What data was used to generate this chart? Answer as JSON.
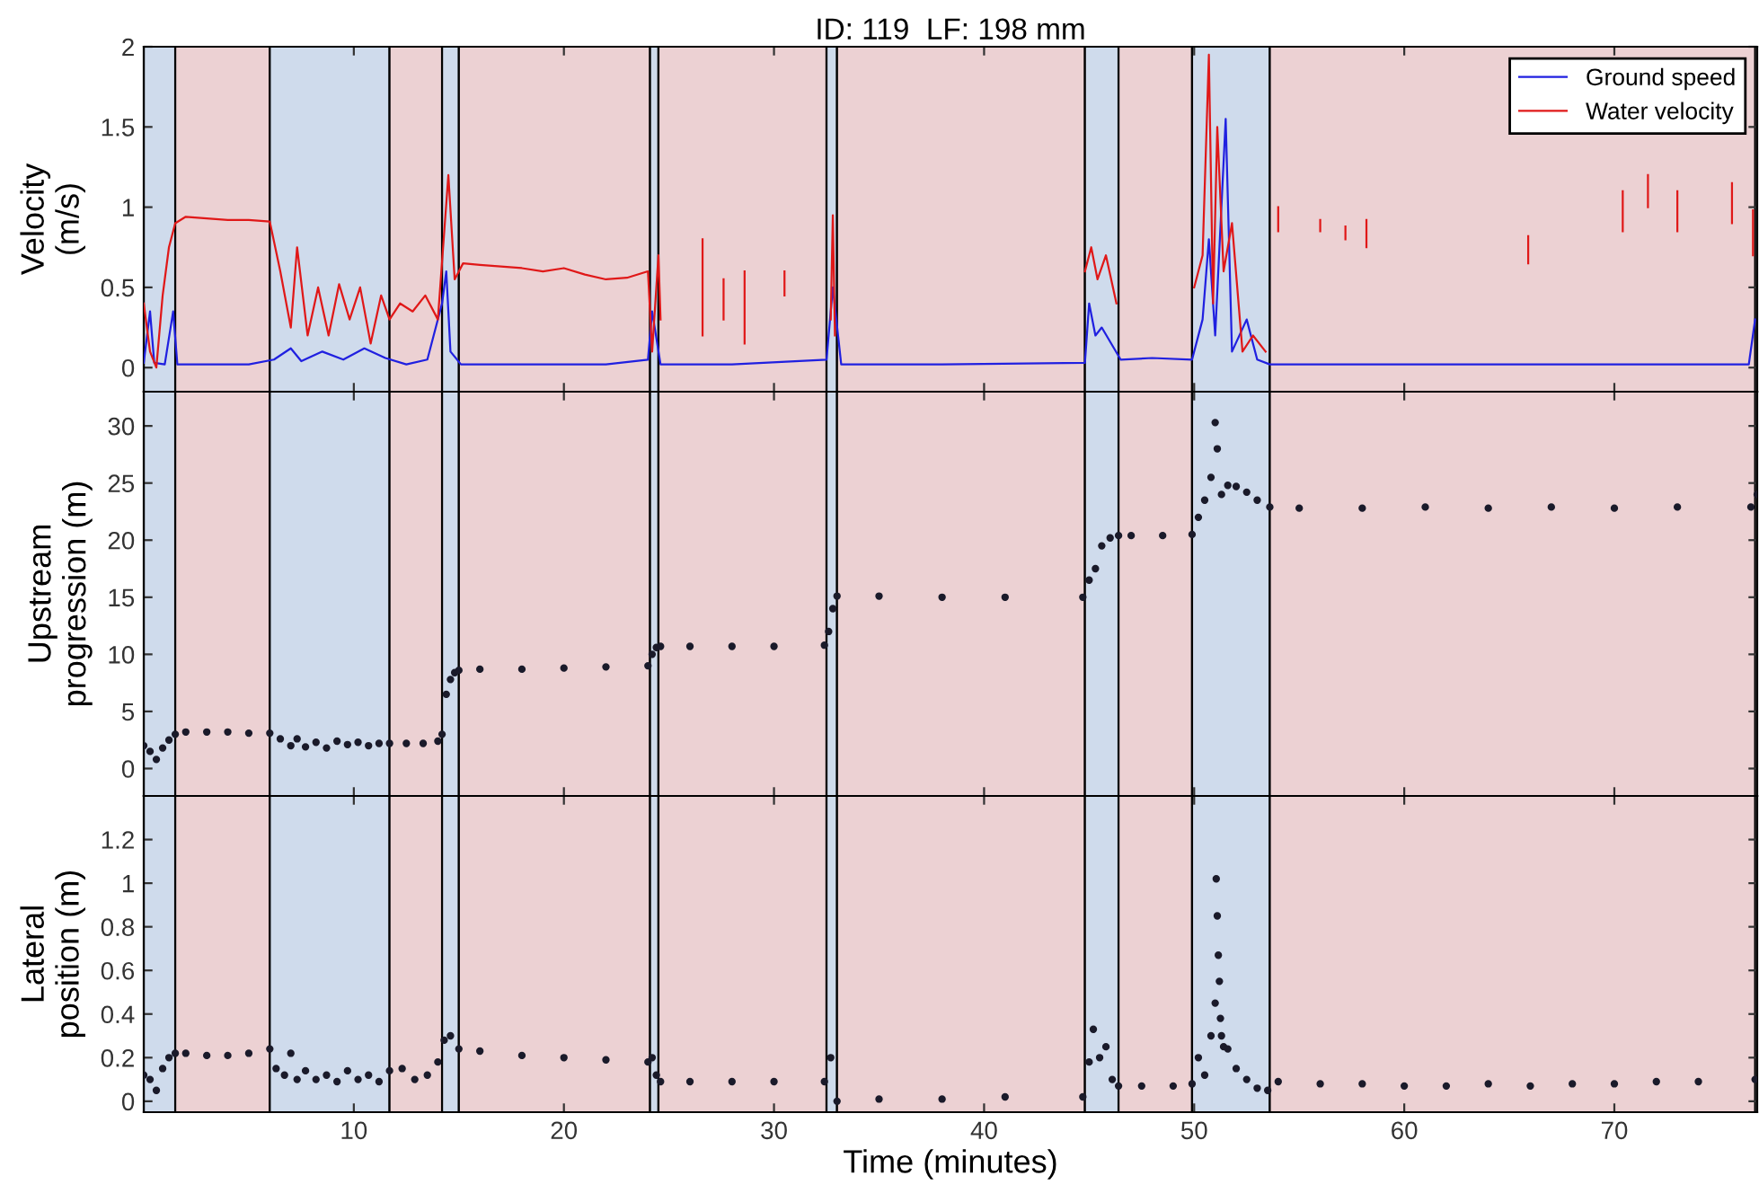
{
  "chart_data": [
    {
      "type": "line",
      "title": "ID: 119  LF: 198 mm",
      "ylabel": "Velocity\n(m/s)",
      "xlim": [
        0,
        76.8
      ],
      "xticks": [
        10,
        20,
        30,
        40,
        50,
        60,
        70
      ],
      "ylim": [
        -0.15,
        2
      ],
      "yticks": [
        0,
        0.5,
        1,
        1.5,
        2
      ],
      "tick_labels": "y",
      "legend": "top right",
      "grid": false,
      "bands": [
        {
          "axis": "x",
          "from": 0,
          "to": 1.5,
          "color": "#cfdbec"
        },
        {
          "axis": "x",
          "from": 1.5,
          "to": 6.0,
          "color": "#ecd1d3"
        },
        {
          "axis": "x",
          "from": 6.0,
          "to": 11.7,
          "color": "#cfdbec"
        },
        {
          "axis": "x",
          "from": 11.7,
          "to": 14.2,
          "color": "#ecd1d3"
        },
        {
          "axis": "x",
          "from": 14.2,
          "to": 15.0,
          "color": "#cfdbec"
        },
        {
          "axis": "x",
          "from": 15.0,
          "to": 24.1,
          "color": "#ecd1d3"
        },
        {
          "axis": "x",
          "from": 24.1,
          "to": 24.5,
          "color": "#cfdbec"
        },
        {
          "axis": "x",
          "from": 24.5,
          "to": 32.5,
          "color": "#ecd1d3"
        },
        {
          "axis": "x",
          "from": 32.5,
          "to": 33.0,
          "color": "#cfdbec"
        },
        {
          "axis": "x",
          "from": 33.0,
          "to": 44.8,
          "color": "#ecd1d3"
        },
        {
          "axis": "x",
          "from": 44.8,
          "to": 46.4,
          "color": "#cfdbec"
        },
        {
          "axis": "x",
          "from": 46.4,
          "to": 49.9,
          "color": "#ecd1d3"
        },
        {
          "axis": "x",
          "from": 49.9,
          "to": 53.6,
          "color": "#cfdbec"
        },
        {
          "axis": "x",
          "from": 53.6,
          "to": 76.7,
          "color": "#ecd1d3"
        }
      ],
      "series": [
        {
          "name": "Ground speed",
          "color": "#2020e0",
          "x": [
            0,
            0.3,
            0.5,
            1.0,
            1.4,
            1.6,
            3,
            5,
            6.2,
            7,
            7.5,
            8.5,
            9.5,
            10.5,
            11.5,
            12.5,
            13.5,
            14.2,
            14.4,
            14.6,
            15.1,
            18,
            22,
            24.0,
            24.2,
            24.6,
            28,
            32.5,
            32.8,
            33.2,
            38,
            44.8,
            45.0,
            45.3,
            45.6,
            46.5,
            48,
            49.9,
            50.4,
            50.7,
            51.0,
            51.5,
            51.8,
            52.5,
            53,
            53.6,
            60,
            70,
            76.4,
            76.7
          ],
          "values": [
            0.03,
            0.35,
            0.03,
            0.02,
            0.35,
            0.02,
            0.02,
            0.02,
            0.05,
            0.12,
            0.04,
            0.1,
            0.05,
            0.12,
            0.06,
            0.02,
            0.05,
            0.4,
            0.6,
            0.1,
            0.02,
            0.02,
            0.02,
            0.05,
            0.35,
            0.02,
            0.02,
            0.05,
            0.5,
            0.02,
            0.02,
            0.03,
            0.4,
            0.2,
            0.25,
            0.05,
            0.06,
            0.05,
            0.3,
            0.8,
            0.2,
            1.55,
            0.1,
            0.3,
            0.05,
            0.02,
            0.02,
            0.02,
            0.02,
            0.3
          ]
        },
        {
          "name": "Water velocity",
          "color": "#e01818",
          "x": [
            0,
            0.3,
            0.6,
            0.9,
            1.2,
            1.5,
            2,
            3,
            4,
            5,
            6,
            6.5,
            7.0,
            7.3,
            7.8,
            8.3,
            8.8,
            9.3,
            9.8,
            10.3,
            10.8,
            11.3,
            11.7,
            12.2,
            12.8,
            13.4,
            14.0,
            14.5,
            14.8,
            15.2,
            16,
            17,
            18,
            19,
            20,
            21,
            22,
            23,
            24.0,
            24.2,
            24.5,
            24.6,
            null,
            26.6,
            26.6,
            null,
            27.6,
            27.6,
            null,
            28.6,
            28.6,
            null,
            30.5,
            30.5,
            null,
            32.7,
            32.8,
            32.9,
            null,
            44.8,
            45.1,
            45.4,
            45.8,
            46.3,
            null,
            50.0,
            50.4,
            50.7,
            50.9,
            51.1,
            51.4,
            51.8,
            52.3,
            52.8,
            53.4,
            null,
            54.0,
            54.0,
            null,
            56.0,
            56.0,
            null,
            57.2,
            57.2,
            null,
            58.2,
            58.2,
            null,
            65.9,
            65.9,
            null,
            70.4,
            70.4,
            null,
            71.6,
            71.6,
            null,
            73.0,
            73.0,
            null,
            75.6,
            75.6,
            null,
            76.6,
            76.6
          ],
          "values": [
            0.4,
            0.1,
            0.0,
            0.45,
            0.75,
            0.9,
            0.94,
            0.93,
            0.92,
            0.92,
            0.91,
            0.6,
            0.25,
            0.75,
            0.2,
            0.5,
            0.2,
            0.52,
            0.3,
            0.5,
            0.15,
            0.45,
            0.3,
            0.4,
            0.35,
            0.45,
            0.3,
            1.2,
            0.55,
            0.65,
            0.64,
            0.63,
            0.62,
            0.6,
            0.62,
            0.58,
            0.55,
            0.56,
            0.6,
            0.1,
            0.7,
            0.3,
            null,
            0.2,
            0.8,
            null,
            0.3,
            0.55,
            null,
            0.15,
            0.6,
            null,
            0.45,
            0.6,
            null,
            0.3,
            0.95,
            0.2,
            null,
            0.6,
            0.75,
            0.55,
            0.7,
            0.4,
            null,
            0.5,
            0.7,
            1.95,
            0.4,
            1.5,
            0.6,
            0.9,
            0.1,
            0.2,
            0.1,
            null,
            0.85,
            1.0,
            null,
            0.85,
            0.92,
            null,
            0.8,
            0.88,
            null,
            0.75,
            0.92,
            null,
            0.65,
            0.82,
            null,
            0.85,
            1.1,
            null,
            1.0,
            1.2,
            null,
            0.85,
            1.1,
            null,
            0.9,
            1.15,
            null,
            0.7,
            0.98
          ]
        }
      ]
    },
    {
      "type": "scatter",
      "ylabel": "Upstream\nprogression (m)",
      "xlim": [
        0,
        76.8
      ],
      "xticks": [
        10,
        20,
        30,
        40,
        50,
        60,
        70
      ],
      "ylim": [
        -2.4,
        33
      ],
      "yticks": [
        0,
        5,
        10,
        15,
        20,
        25,
        30
      ],
      "tick_labels": "y",
      "marker": "circle",
      "grid": false,
      "bands": [
        {
          "axis": "x",
          "from": 0,
          "to": 1.5,
          "color": "#cfdbec"
        },
        {
          "axis": "x",
          "from": 1.5,
          "to": 6.0,
          "color": "#ecd1d3"
        },
        {
          "axis": "x",
          "from": 6.0,
          "to": 11.7,
          "color": "#cfdbec"
        },
        {
          "axis": "x",
          "from": 11.7,
          "to": 14.2,
          "color": "#ecd1d3"
        },
        {
          "axis": "x",
          "from": 14.2,
          "to": 15.0,
          "color": "#cfdbec"
        },
        {
          "axis": "x",
          "from": 15.0,
          "to": 24.1,
          "color": "#ecd1d3"
        },
        {
          "axis": "x",
          "from": 24.1,
          "to": 24.5,
          "color": "#cfdbec"
        },
        {
          "axis": "x",
          "from": 24.5,
          "to": 32.5,
          "color": "#ecd1d3"
        },
        {
          "axis": "x",
          "from": 32.5,
          "to": 33.0,
          "color": "#cfdbec"
        },
        {
          "axis": "x",
          "from": 33.0,
          "to": 44.8,
          "color": "#ecd1d3"
        },
        {
          "axis": "x",
          "from": 44.8,
          "to": 46.4,
          "color": "#cfdbec"
        },
        {
          "axis": "x",
          "from": 46.4,
          "to": 49.9,
          "color": "#ecd1d3"
        },
        {
          "axis": "x",
          "from": 49.9,
          "to": 53.6,
          "color": "#cfdbec"
        },
        {
          "axis": "x",
          "from": 53.6,
          "to": 76.7,
          "color": "#ecd1d3"
        }
      ],
      "series": [
        {
          "color": "#1a1a2a",
          "x": [
            0,
            0.3,
            0.6,
            0.9,
            1.2,
            1.5,
            2,
            3,
            4,
            5,
            6,
            6.5,
            7,
            7.3,
            7.7,
            8.2,
            8.7,
            9.2,
            9.7,
            10.2,
            10.7,
            11.2,
            11.7,
            12.5,
            13.3,
            14.0,
            14.2,
            14.4,
            14.6,
            14.8,
            15.0,
            16,
            18,
            20,
            22,
            24.0,
            24.2,
            24.4,
            24.6,
            26,
            28,
            30,
            32.4,
            32.6,
            32.8,
            33.0,
            35,
            38,
            41,
            44.7,
            45.0,
            45.3,
            45.6,
            46.0,
            46.4,
            47,
            48.5,
            49.9,
            50.2,
            50.5,
            50.8,
            51.0,
            51.1,
            51.3,
            51.6,
            52,
            52.5,
            53,
            53.6,
            55,
            58,
            61,
            64,
            67,
            70,
            73,
            76.5,
            76.8
          ],
          "values": [
            2.0,
            1.5,
            0.8,
            1.8,
            2.5,
            3.0,
            3.2,
            3.2,
            3.2,
            3.1,
            3.1,
            2.6,
            2.0,
            2.6,
            1.9,
            2.3,
            1.8,
            2.4,
            2.1,
            2.3,
            2.0,
            2.2,
            2.2,
            2.2,
            2.2,
            2.4,
            3.0,
            6.5,
            7.8,
            8.4,
            8.6,
            8.7,
            8.7,
            8.8,
            8.9,
            9.0,
            10.0,
            10.6,
            10.7,
            10.7,
            10.7,
            10.7,
            10.8,
            12.0,
            14.0,
            15.1,
            15.1,
            15.0,
            15.0,
            15.0,
            16.5,
            17.5,
            19.5,
            20.2,
            20.4,
            20.4,
            20.4,
            20.5,
            22.0,
            23.5,
            25.5,
            30.3,
            28.0,
            24.0,
            24.8,
            24.7,
            24.2,
            23.5,
            22.9,
            22.8,
            22.8,
            22.9,
            22.8,
            22.9,
            22.8,
            22.9,
            22.9,
            24.0
          ]
        }
      ]
    },
    {
      "type": "scatter",
      "ylabel": "Lateral\nposition (m)",
      "xlabel": "Time (minutes)",
      "xlim": [
        0,
        76.8
      ],
      "xticks": [
        10,
        20,
        30,
        40,
        50,
        60,
        70
      ],
      "ylim": [
        -0.05,
        1.4
      ],
      "yticks": [
        0,
        0.2,
        0.4,
        0.6,
        0.8,
        1,
        1.2
      ],
      "marker": "circle",
      "grid": false,
      "bands": [
        {
          "axis": "x",
          "from": 0,
          "to": 1.5,
          "color": "#cfdbec"
        },
        {
          "axis": "x",
          "from": 1.5,
          "to": 6.0,
          "color": "#ecd1d3"
        },
        {
          "axis": "x",
          "from": 6.0,
          "to": 11.7,
          "color": "#cfdbec"
        },
        {
          "axis": "x",
          "from": 11.7,
          "to": 14.2,
          "color": "#ecd1d3"
        },
        {
          "axis": "x",
          "from": 14.2,
          "to": 15.0,
          "color": "#cfdbec"
        },
        {
          "axis": "x",
          "from": 15.0,
          "to": 24.1,
          "color": "#ecd1d3"
        },
        {
          "axis": "x",
          "from": 24.1,
          "to": 24.5,
          "color": "#cfdbec"
        },
        {
          "axis": "x",
          "from": 24.5,
          "to": 32.5,
          "color": "#ecd1d3"
        },
        {
          "axis": "x",
          "from": 32.5,
          "to": 33.0,
          "color": "#cfdbec"
        },
        {
          "axis": "x",
          "from": 33.0,
          "to": 44.8,
          "color": "#ecd1d3"
        },
        {
          "axis": "x",
          "from": 44.8,
          "to": 46.4,
          "color": "#cfdbec"
        },
        {
          "axis": "x",
          "from": 46.4,
          "to": 49.9,
          "color": "#ecd1d3"
        },
        {
          "axis": "x",
          "from": 49.9,
          "to": 53.6,
          "color": "#cfdbec"
        },
        {
          "axis": "x",
          "from": 53.6,
          "to": 76.7,
          "color": "#ecd1d3"
        }
      ],
      "series": [
        {
          "color": "#1a1a2a",
          "x": [
            0,
            0.3,
            0.6,
            0.9,
            1.2,
            1.5,
            2,
            3,
            4,
            5,
            6,
            6.3,
            6.7,
            7.0,
            7.3,
            7.7,
            8.2,
            8.7,
            9.2,
            9.7,
            10.2,
            10.7,
            11.2,
            11.7,
            12.3,
            12.9,
            13.5,
            14.0,
            14.3,
            14.6,
            15.0,
            16,
            18,
            20,
            22,
            24.0,
            24.2,
            24.4,
            24.6,
            26,
            28,
            30,
            32.4,
            32.7,
            33.0,
            35,
            38,
            41,
            44.7,
            45.0,
            45.2,
            45.5,
            45.8,
            46.1,
            46.4,
            47.5,
            49,
            49.9,
            50.2,
            50.5,
            50.8,
            51.0,
            51.05,
            51.1,
            51.15,
            51.2,
            51.25,
            51.3,
            51.4,
            51.6,
            52,
            52.5,
            53,
            53.5,
            54,
            56,
            58,
            60,
            62,
            64,
            66,
            68,
            70,
            72,
            74,
            76.7
          ],
          "values": [
            0.12,
            0.1,
            0.05,
            0.15,
            0.2,
            0.22,
            0.22,
            0.21,
            0.21,
            0.22,
            0.24,
            0.15,
            0.12,
            0.22,
            0.1,
            0.14,
            0.1,
            0.12,
            0.09,
            0.14,
            0.1,
            0.12,
            0.09,
            0.14,
            0.15,
            0.1,
            0.12,
            0.18,
            0.28,
            0.3,
            0.24,
            0.23,
            0.21,
            0.2,
            0.19,
            0.18,
            0.2,
            0.12,
            0.09,
            0.09,
            0.09,
            0.09,
            0.09,
            0.2,
            0.0,
            0.01,
            0.01,
            0.02,
            0.02,
            0.18,
            0.33,
            0.2,
            0.25,
            0.1,
            0.07,
            0.07,
            0.07,
            0.08,
            0.2,
            0.12,
            0.3,
            0.45,
            1.02,
            0.85,
            0.67,
            0.55,
            0.38,
            0.3,
            0.25,
            0.24,
            0.15,
            0.1,
            0.06,
            0.05,
            0.09,
            0.08,
            0.08,
            0.07,
            0.07,
            0.08,
            0.07,
            0.08,
            0.08,
            0.09,
            0.09,
            0.1
          ]
        }
      ]
    }
  ]
}
